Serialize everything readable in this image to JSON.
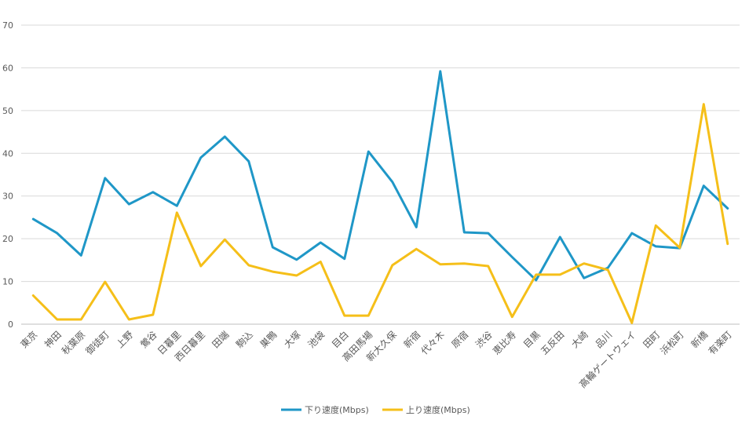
{
  "chart_data": {
    "type": "line",
    "title": "",
    "xlabel": "",
    "ylabel": "",
    "ylim": [
      0,
      70
    ],
    "yticks": [
      0,
      10,
      20,
      30,
      40,
      50,
      60,
      70
    ],
    "grid": true,
    "legend_position": "bottom",
    "categories": [
      "東京",
      "神田",
      "秋葉原",
      "御徒町",
      "上野",
      "鶯谷",
      "日暮里",
      "西日暮里",
      "田端",
      "駒込",
      "巣鴨",
      "大塚",
      "池袋",
      "目白",
      "高田馬場",
      "新大久保",
      "新宿",
      "代々木",
      "原宿",
      "渋谷",
      "恵比寿",
      "目黒",
      "五反田",
      "大崎",
      "品川",
      "高輪ゲートウェイ",
      "田町",
      "浜松町",
      "新橋",
      "有楽町"
    ],
    "series": [
      {
        "name": "下り速度(Mbps)",
        "color": "#1f97c7",
        "values": [
          24.6,
          21.3,
          16.1,
          34.2,
          28.1,
          30.9,
          27.7,
          39.0,
          43.9,
          38.1,
          18.0,
          15.1,
          19.1,
          15.3,
          40.4,
          33.3,
          22.7,
          59.2,
          21.5,
          21.3,
          15.7,
          10.3,
          20.4,
          10.8,
          13.2,
          21.3,
          18.2,
          17.8,
          32.4,
          27.1
        ]
      },
      {
        "name": "上り速度(Mbps)",
        "color": "#f5bf19",
        "values": [
          6.7,
          1.1,
          1.1,
          9.9,
          1.1,
          2.2,
          26.1,
          13.6,
          19.8,
          13.8,
          12.3,
          11.4,
          14.6,
          2.0,
          2.0,
          13.8,
          17.6,
          14.0,
          14.2,
          13.6,
          1.7,
          11.6,
          11.6,
          14.2,
          12.7,
          0.3,
          23.1,
          17.9,
          51.5,
          18.8
        ]
      }
    ]
  }
}
